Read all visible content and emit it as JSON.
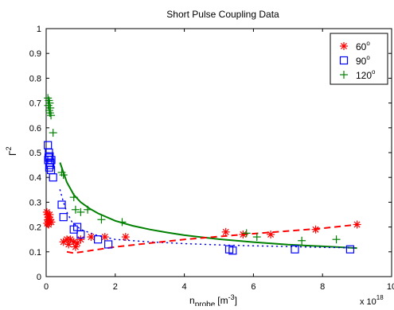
{
  "chart_data": {
    "type": "scatter",
    "title": "Short Pulse Coupling Data",
    "xlabel_main": "n",
    "xlabel_sub": "probe",
    "xlabel_unit": "[m",
    "xlabel_unit_exp": "-3",
    "xlabel_unit_close": "]",
    "ylabel_main": "Γ",
    "ylabel_exp": "2",
    "x_multiplier_base": "x 10",
    "x_multiplier_exp": "18",
    "xlim": [
      0,
      10
    ],
    "ylim": [
      0,
      1
    ],
    "x_ticks": [
      0,
      2,
      4,
      6,
      8,
      10
    ],
    "y_ticks": [
      0,
      0.1,
      0.2,
      0.3,
      0.4,
      0.5,
      0.6,
      0.7,
      0.8,
      0.9,
      1
    ],
    "x_tick_labels": [
      "0",
      "2",
      "4",
      "6",
      "8",
      "10"
    ],
    "y_tick_labels": [
      "0",
      "0.1",
      "0.2",
      "0.3",
      "0.4",
      "0.5",
      "0.6",
      "0.7",
      "0.8",
      "0.9",
      "1"
    ],
    "legend_placement": "top-right",
    "legend": [
      {
        "label": "60",
        "deg": "o",
        "marker": "asterisk",
        "color": "#ff0000"
      },
      {
        "label": "90",
        "deg": "o",
        "marker": "square",
        "color": "#0000ff"
      },
      {
        "label": "120",
        "deg": "o",
        "marker": "plus",
        "color": "#008000"
      }
    ],
    "series": [
      {
        "name": "60",
        "marker": "asterisk",
        "color": "#ff0000",
        "points": [
          [
            0.02,
            0.26
          ],
          [
            0.04,
            0.25
          ],
          [
            0.06,
            0.24
          ],
          [
            0.05,
            0.23
          ],
          [
            0.08,
            0.22
          ],
          [
            0.03,
            0.215
          ],
          [
            0.1,
            0.25
          ],
          [
            0.12,
            0.23
          ],
          [
            0.07,
            0.21
          ],
          [
            0.15,
            0.22
          ],
          [
            0.5,
            0.14
          ],
          [
            0.6,
            0.15
          ],
          [
            0.65,
            0.13
          ],
          [
            0.7,
            0.15
          ],
          [
            0.8,
            0.14
          ],
          [
            0.85,
            0.12
          ],
          [
            0.9,
            0.135
          ],
          [
            1.0,
            0.15
          ],
          [
            1.3,
            0.16
          ],
          [
            1.7,
            0.16
          ],
          [
            2.3,
            0.16
          ],
          [
            5.2,
            0.18
          ],
          [
            5.7,
            0.17
          ],
          [
            6.5,
            0.17
          ],
          [
            7.8,
            0.19
          ],
          [
            9.0,
            0.21
          ]
        ]
      },
      {
        "name": "90",
        "marker": "square",
        "color": "#0000ff",
        "points": [
          [
            0.05,
            0.53
          ],
          [
            0.08,
            0.5
          ],
          [
            0.1,
            0.485
          ],
          [
            0.06,
            0.47
          ],
          [
            0.12,
            0.46
          ],
          [
            0.09,
            0.44
          ],
          [
            0.14,
            0.43
          ],
          [
            0.15,
            0.47
          ],
          [
            0.07,
            0.48
          ],
          [
            0.11,
            0.45
          ],
          [
            0.2,
            0.4
          ],
          [
            0.45,
            0.29
          ],
          [
            0.5,
            0.24
          ],
          [
            0.8,
            0.19
          ],
          [
            0.9,
            0.2
          ],
          [
            1.0,
            0.17
          ],
          [
            1.5,
            0.15
          ],
          [
            1.8,
            0.13
          ],
          [
            5.3,
            0.11
          ],
          [
            5.4,
            0.105
          ],
          [
            7.2,
            0.11
          ],
          [
            8.8,
            0.11
          ]
        ]
      },
      {
        "name": "120",
        "marker": "plus",
        "color": "#008000",
        "points": [
          [
            0.05,
            0.72
          ],
          [
            0.08,
            0.71
          ],
          [
            0.1,
            0.7
          ],
          [
            0.06,
            0.69
          ],
          [
            0.12,
            0.68
          ],
          [
            0.09,
            0.67
          ],
          [
            0.11,
            0.66
          ],
          [
            0.14,
            0.65
          ],
          [
            0.2,
            0.58
          ],
          [
            0.45,
            0.42
          ],
          [
            0.5,
            0.41
          ],
          [
            0.8,
            0.32
          ],
          [
            0.85,
            0.27
          ],
          [
            1.0,
            0.26
          ],
          [
            1.2,
            0.27
          ],
          [
            1.6,
            0.23
          ],
          [
            2.2,
            0.22
          ],
          [
            5.8,
            0.175
          ],
          [
            6.1,
            0.16
          ],
          [
            7.4,
            0.145
          ],
          [
            8.4,
            0.15
          ]
        ]
      }
    ],
    "lines": [
      {
        "name": "green-solid",
        "style": "solid",
        "color": "#008000",
        "points": [
          [
            0.4,
            0.46
          ],
          [
            0.6,
            0.38
          ],
          [
            0.8,
            0.33
          ],
          [
            1.0,
            0.3
          ],
          [
            1.25,
            0.275
          ],
          [
            1.5,
            0.255
          ],
          [
            2.0,
            0.225
          ],
          [
            2.5,
            0.205
          ],
          [
            3.0,
            0.19
          ],
          [
            3.5,
            0.178
          ],
          [
            4.0,
            0.167
          ],
          [
            5.0,
            0.151
          ],
          [
            6.0,
            0.139
          ],
          [
            7.0,
            0.129
          ],
          [
            8.0,
            0.122
          ],
          [
            9.0,
            0.115
          ]
        ]
      },
      {
        "name": "blue-dotted",
        "style": "dotted",
        "color": "#0000ff",
        "points": [
          [
            0.4,
            0.35
          ],
          [
            0.5,
            0.3
          ],
          [
            0.6,
            0.26
          ],
          [
            0.75,
            0.22
          ],
          [
            1.0,
            0.19
          ],
          [
            1.5,
            0.165
          ],
          [
            2.0,
            0.15
          ],
          [
            3.0,
            0.14
          ],
          [
            4.0,
            0.133
          ],
          [
            5.0,
            0.128
          ],
          [
            6.0,
            0.124
          ],
          [
            7.0,
            0.121
          ],
          [
            8.0,
            0.118
          ],
          [
            9.0,
            0.116
          ]
        ]
      },
      {
        "name": "red-dashed",
        "style": "dashed",
        "color": "#ff0000",
        "points": [
          [
            0.6,
            0.1
          ],
          [
            0.8,
            0.095
          ],
          [
            2.0,
            0.12
          ],
          [
            4.0,
            0.15
          ],
          [
            6.0,
            0.173
          ],
          [
            8.0,
            0.195
          ],
          [
            9.0,
            0.21
          ]
        ]
      }
    ]
  }
}
